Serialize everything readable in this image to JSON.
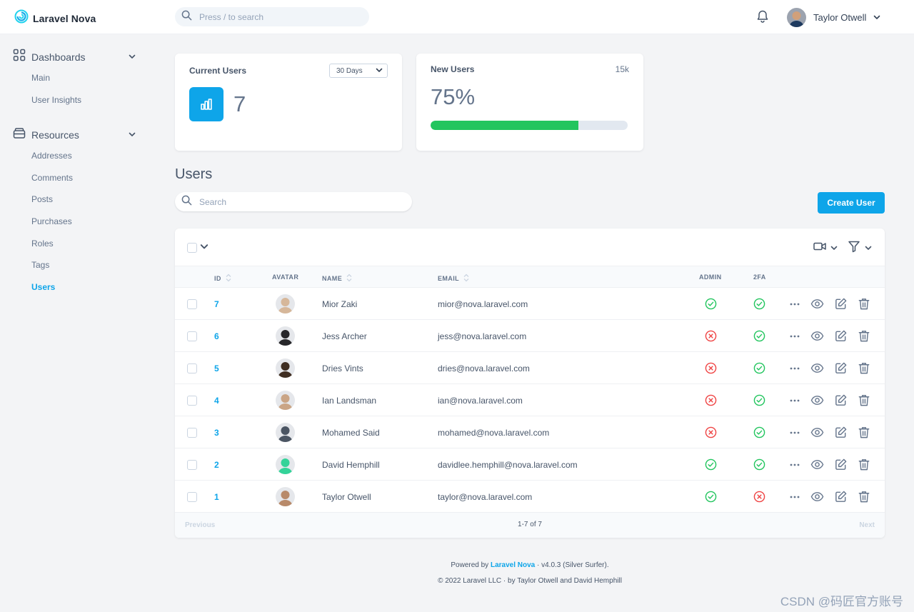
{
  "app": {
    "brand": "Laravel Nova",
    "search_placeholder": "Press / to search"
  },
  "user": {
    "name": "Taylor Otwell"
  },
  "sidebar": {
    "dashboards": {
      "label": "Dashboards",
      "items": [
        "Main",
        "User Insights"
      ]
    },
    "resources": {
      "label": "Resources",
      "items": [
        "Addresses",
        "Comments",
        "Posts",
        "Purchases",
        "Roles",
        "Tags",
        "Users"
      ],
      "active": "Users"
    }
  },
  "metrics": {
    "current_users": {
      "title": "Current Users",
      "range": "30 Days",
      "value": "7"
    },
    "new_users": {
      "title": "New Users",
      "target": "15k",
      "percent_label": "75%",
      "progress": 0.75
    }
  },
  "resource": {
    "title": "Users",
    "search_placeholder": "Search",
    "create_label": "Create User",
    "columns": {
      "id": "ID",
      "avatar": "AVATAR",
      "name": "NAME",
      "email": "EMAIL",
      "admin": "ADMIN",
      "twofa": "2FA"
    },
    "rows": [
      {
        "id": "7",
        "name": "Mior Zaki",
        "email": "mior@nova.laravel.com",
        "admin": true,
        "twofa": true,
        "avatar_color": "#d6b79a"
      },
      {
        "id": "6",
        "name": "Jess Archer",
        "email": "jess@nova.laravel.com",
        "admin": false,
        "twofa": true,
        "avatar_color": "#27272a"
      },
      {
        "id": "5",
        "name": "Dries Vints",
        "email": "dries@nova.laravel.com",
        "admin": false,
        "twofa": true,
        "avatar_color": "#3f2e22"
      },
      {
        "id": "4",
        "name": "Ian Landsman",
        "email": "ian@nova.laravel.com",
        "admin": false,
        "twofa": true,
        "avatar_color": "#caa586"
      },
      {
        "id": "3",
        "name": "Mohamed Said",
        "email": "mohamed@nova.laravel.com",
        "admin": false,
        "twofa": true,
        "avatar_color": "#4b5563"
      },
      {
        "id": "2",
        "name": "David Hemphill",
        "email": "davidlee.hemphill@nova.laravel.com",
        "admin": true,
        "twofa": true,
        "avatar_color": "#34d399"
      },
      {
        "id": "1",
        "name": "Taylor Otwell",
        "email": "taylor@nova.laravel.com",
        "admin": true,
        "twofa": false,
        "avatar_color": "#b88a6a"
      }
    ],
    "pagination": {
      "previous": "Previous",
      "range": "1-7 of 7",
      "next": "Next"
    }
  },
  "footer": {
    "powered_prefix": "Powered by",
    "powered_link": "Laravel Nova",
    "powered_suffix": "· v4.0.3 (Silver Surfer).",
    "copyright": "© 2022 Laravel LLC · by Taylor Otwell and David Hemphill"
  },
  "watermark": "CSDN @码匠官方账号",
  "colors": {
    "accent": "#0ea5e9",
    "success": "#22c55e",
    "danger": "#ef4444"
  }
}
